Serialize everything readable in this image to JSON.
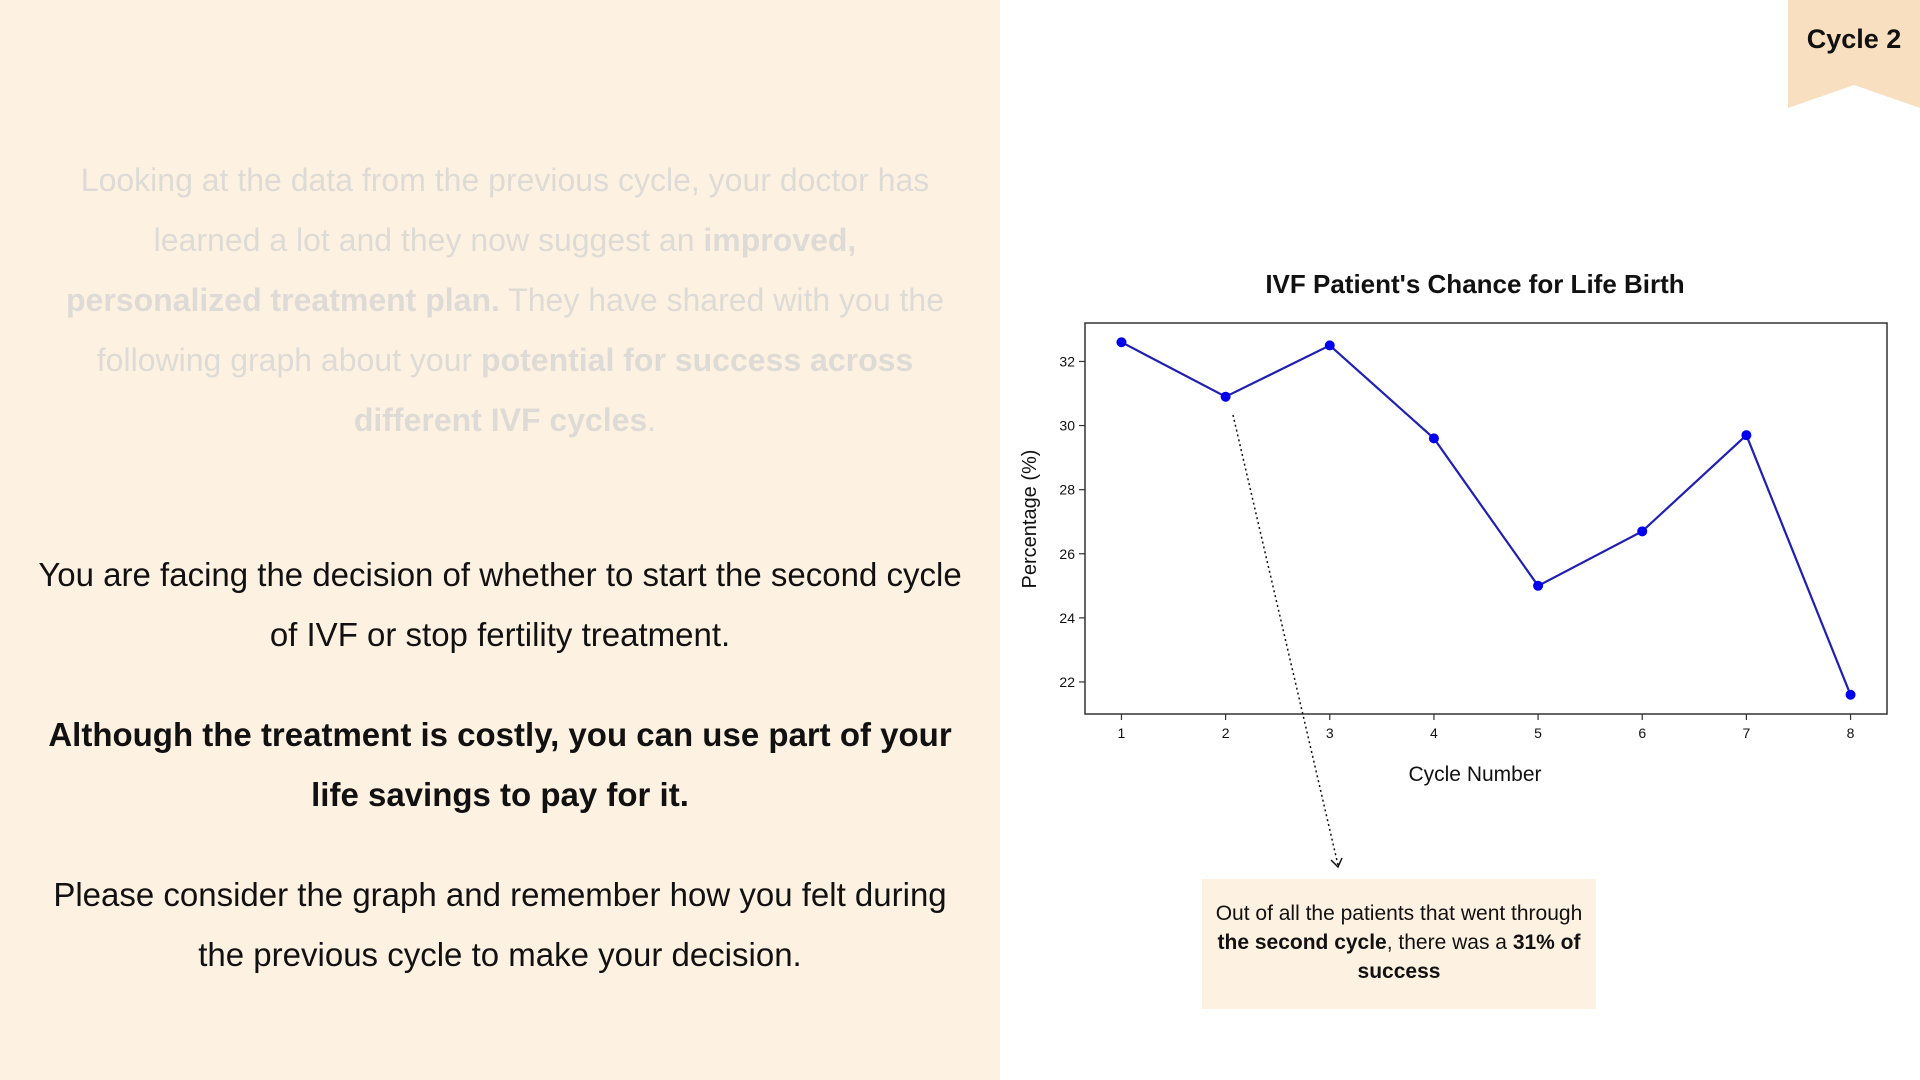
{
  "badge": {
    "label": "Cycle 2",
    "color": "#f8dfbf"
  },
  "colors": {
    "left_panel": "#fdf1e1",
    "series": "#1f1fb4",
    "marker": "#0000ee"
  },
  "intro_faded": {
    "part1": "Looking at the data from the previous cycle, your doctor has learned a lot and they now suggest an ",
    "bold1": "improved, personalized treatment plan.",
    "part2": " They have shared with you the following graph about your ",
    "bold2": "potential for success across different IVF cycles",
    "part3": "."
  },
  "decision_text": "You are facing the decision of whether to start the second cycle of IVF or stop fertility treatment.",
  "cost_text": "Although the treatment is costly, you can use part of your life savings to pay for it.",
  "consider_text": "Please consider the graph and remember how you felt during the previous cycle to make your decision.",
  "annotation": {
    "part1": "Out of all the patients that went through ",
    "bold1": "the second cycle",
    "part2": ", there was a ",
    "bold2": "31% of success"
  },
  "chart_data": {
    "type": "line",
    "title": "IVF Patient's Chance for Life Birth",
    "xlabel": "Cycle Number",
    "ylabel": "Percentage (%)",
    "x": [
      1,
      2,
      3,
      4,
      5,
      6,
      7,
      8
    ],
    "values": [
      32.6,
      30.9,
      32.5,
      29.6,
      25.0,
      26.7,
      29.7,
      21.6
    ],
    "xticks": [
      "1",
      "2",
      "3",
      "4",
      "5",
      "6",
      "7",
      "8"
    ],
    "yticks": [
      "22",
      "24",
      "26",
      "28",
      "30",
      "32"
    ],
    "ytick_values": [
      22,
      24,
      26,
      28,
      30,
      32
    ],
    "xlim": [
      0.65,
      8.35
    ],
    "ylim": [
      21.0,
      33.2
    ],
    "grid": false
  }
}
